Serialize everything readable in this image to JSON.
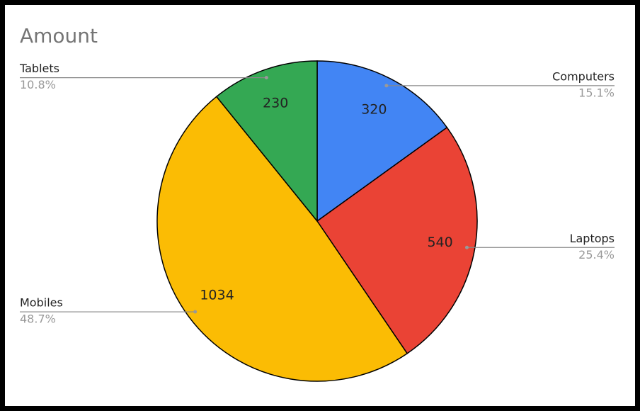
{
  "chart_data": {
    "type": "pie",
    "title": "Amount",
    "categories": [
      "Computers",
      "Laptops",
      "Mobiles",
      "Tablets"
    ],
    "values": [
      320,
      540,
      1034,
      230
    ],
    "percent_labels": [
      "15.1%",
      "25.4%",
      "48.7%",
      "10.8%"
    ],
    "colors": [
      "#4285f4",
      "#ea4335",
      "#fbbc04",
      "#34a853"
    ]
  }
}
